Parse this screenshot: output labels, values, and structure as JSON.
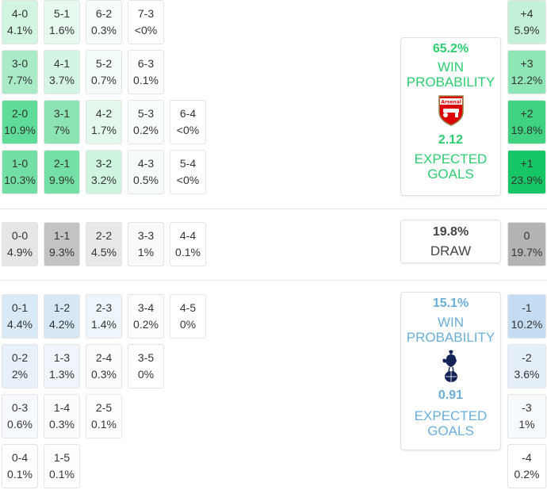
{
  "home_scores": [
    {
      "score": "4-0",
      "prob": "4.1%",
      "bg": "#d2f5e2"
    },
    {
      "score": "5-1",
      "prob": "1.6%",
      "bg": "#e8f9ef"
    },
    {
      "score": "6-2",
      "prob": "0.3%",
      "bg": "#f7fdf9"
    },
    {
      "score": "7-3",
      "prob": "<0%",
      "bg": "#ffffff"
    },
    {
      "score": "3-0",
      "prob": "7.7%",
      "bg": "#a9ebc7"
    },
    {
      "score": "4-1",
      "prob": "3.7%",
      "bg": "#d5f5e4"
    },
    {
      "score": "5-2",
      "prob": "0.7%",
      "bg": "#f3fcf6"
    },
    {
      "score": "6-3",
      "prob": "0.1%",
      "bg": "#fbfefc"
    },
    {
      "score": "2-0",
      "prob": "10.9%",
      "bg": "#5fdc98"
    },
    {
      "score": "3-1",
      "prob": "7%",
      "bg": "#8ce4b4"
    },
    {
      "score": "4-2",
      "prob": "1.7%",
      "bg": "#e4f8ec"
    },
    {
      "score": "5-3",
      "prob": "0.2%",
      "bg": "#fafefb"
    },
    {
      "score": "6-4",
      "prob": "<0%",
      "bg": "#ffffff"
    },
    {
      "score": "1-0",
      "prob": "10.3%",
      "bg": "#72e0a4"
    },
    {
      "score": "2-1",
      "prob": "9.9%",
      "bg": "#74e0a5"
    },
    {
      "score": "3-2",
      "prob": "3.2%",
      "bg": "#cff4e0"
    },
    {
      "score": "4-3",
      "prob": "0.5%",
      "bg": "#f6fdf8"
    },
    {
      "score": "5-4",
      "prob": "<0%",
      "bg": "#ffffff"
    }
  ],
  "draw_scores": [
    {
      "score": "0-0",
      "prob": "4.9%",
      "bg": "#e6e6e6"
    },
    {
      "score": "1-1",
      "prob": "9.3%",
      "bg": "#c3c3c3"
    },
    {
      "score": "2-2",
      "prob": "4.5%",
      "bg": "#e8e8e8"
    },
    {
      "score": "3-3",
      "prob": "1%",
      "bg": "#fafafa"
    },
    {
      "score": "4-4",
      "prob": "0.1%",
      "bg": "#ffffff"
    }
  ],
  "away_scores": [
    {
      "score": "0-1",
      "prob": "4.4%",
      "bg": "#d9e9f6"
    },
    {
      "score": "1-2",
      "prob": "4.2%",
      "bg": "#d6e8f6"
    },
    {
      "score": "2-3",
      "prob": "1.4%",
      "bg": "#eef5fb"
    },
    {
      "score": "3-4",
      "prob": "0.2%",
      "bg": "#fbfdfe"
    },
    {
      "score": "4-5",
      "prob": "0%",
      "bg": "#ffffff"
    },
    {
      "score": "0-2",
      "prob": "2%",
      "bg": "#e8f1fa"
    },
    {
      "score": "1-3",
      "prob": "1.3%",
      "bg": "#eff5fb"
    },
    {
      "score": "2-4",
      "prob": "0.3%",
      "bg": "#fafcfe"
    },
    {
      "score": "3-5",
      "prob": "0%",
      "bg": "#ffffff"
    },
    {
      "score": "0-3",
      "prob": "0.6%",
      "bg": "#f6f9fd"
    },
    {
      "score": "1-4",
      "prob": "0.3%",
      "bg": "#fafcfe"
    },
    {
      "score": "2-5",
      "prob": "0.1%",
      "bg": "#fdfeff"
    },
    {
      "score": "0-4",
      "prob": "0.1%",
      "bg": "#fdfeff"
    },
    {
      "score": "1-5",
      "prob": "0.1%",
      "bg": "#fdfeff"
    }
  ],
  "home_panel": {
    "win_pct": "65.2%",
    "win_label_1": "WIN",
    "win_label_2": "PROBABILITY",
    "xg": "2.12",
    "xg_label_1": "EXPECTED",
    "xg_label_2": "GOALS",
    "badge_text": "Arsenal",
    "color": "#2ecc71",
    "icon": "arsenal-crest-icon"
  },
  "draw_panel": {
    "pct": "19.8%",
    "label": "DRAW"
  },
  "away_panel": {
    "win_pct": "15.1%",
    "win_label_1": "WIN",
    "win_label_2": "PROBABILITY",
    "xg": "0.91",
    "xg_label_1": "EXPECTED",
    "xg_label_2": "GOALS",
    "color": "#6baed6",
    "icon": "tottenham-cockerel-icon"
  },
  "goal_diff": [
    {
      "diff": "+4",
      "prob": "5.9%",
      "bg": "#c4f0d8"
    },
    {
      "diff": "+3",
      "prob": "12.2%",
      "bg": "#8ee5b5"
    },
    {
      "diff": "+2",
      "prob": "19.8%",
      "bg": "#3fd381"
    },
    {
      "diff": "+1",
      "prob": "23.9%",
      "bg": "#17c766"
    },
    {
      "diff": "0",
      "prob": "19.7%",
      "bg": "#b4b4b4"
    },
    {
      "diff": "-1",
      "prob": "10.2%",
      "bg": "#c5ddf2"
    },
    {
      "diff": "-2",
      "prob": "3.6%",
      "bg": "#e4eff9"
    },
    {
      "diff": "-3",
      "prob": "1%",
      "bg": "#f7fafd"
    },
    {
      "diff": "-4",
      "prob": "0.2%",
      "bg": "#ffffff"
    }
  ]
}
